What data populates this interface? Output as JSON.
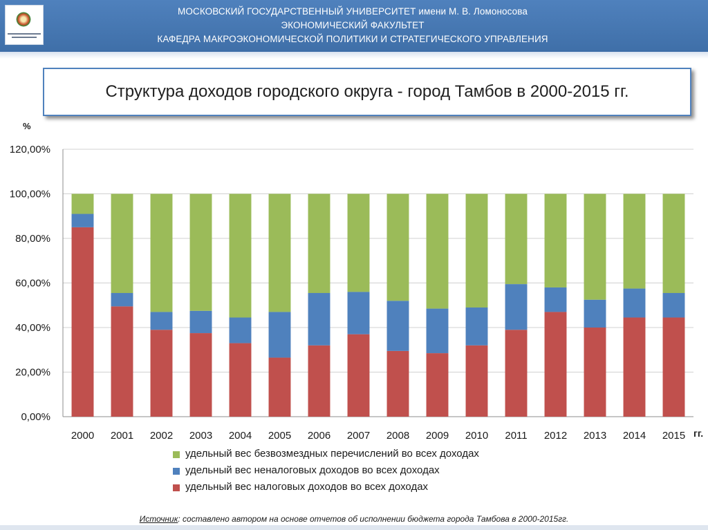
{
  "header": {
    "line1": "МОСКОВСКИЙ ГОСУДАРСТВЕННЫЙ УНИВЕРСИТЕТ имени  М. В. Ломоносова",
    "line2": "ЭКОНОМИЧЕСКИЙ ФАКУЛЬТЕТ",
    "line3": "КАФЕДРА МАКРОЭКОНОМИЧЕСКОЙ ПОЛИТИКИ И СТРАТЕГИЧЕСКОГО УПРАВЛЕНИЯ"
  },
  "title": "Структура доходов городского округа - город Тамбов в 2000-2015 гг.",
  "source": {
    "lead": "Источник",
    "text": ": составлено автором на основе отчетов об исполнении бюджета города Тамбова в 2000-2015гг."
  },
  "chart_data": {
    "type": "bar",
    "stacked": true,
    "ylabel": "%",
    "xlabel": "гг.",
    "ylim": [
      0,
      1.2
    ],
    "yticks": [
      0,
      0.2,
      0.4,
      0.6,
      0.8,
      1.0,
      1.2
    ],
    "ytick_labels": [
      "0,00%",
      "20,00%",
      "40,00%",
      "60,00%",
      "80,00%",
      "100,00%",
      "120,00%"
    ],
    "grid": true,
    "legend_position": "bottom",
    "categories": [
      "2000",
      "2001",
      "2002",
      "2003",
      "2004",
      "2005",
      "2006",
      "2007",
      "2008",
      "2009",
      "2010",
      "2011",
      "2012",
      "2013",
      "2014",
      "2015"
    ],
    "series": [
      {
        "name": "удельный вес налоговых доходов во всех доходах",
        "color": "#c0504d",
        "values": [
          0.85,
          0.495,
          0.39,
          0.375,
          0.33,
          0.265,
          0.32,
          0.37,
          0.295,
          0.285,
          0.32,
          0.39,
          0.47,
          0.4,
          0.445,
          0.445
        ]
      },
      {
        "name": "удельный вес неналоговых доходов во всех доходах",
        "color": "#4f81bd",
        "values": [
          0.06,
          0.06,
          0.08,
          0.1,
          0.115,
          0.205,
          0.235,
          0.19,
          0.225,
          0.2,
          0.17,
          0.205,
          0.11,
          0.125,
          0.13,
          0.11
        ]
      },
      {
        "name": "удельный вес безвозмездных перечислений во всех доходах",
        "color": "#9bbb59",
        "values": [
          0.09,
          0.445,
          0.53,
          0.525,
          0.555,
          0.53,
          0.445,
          0.44,
          0.48,
          0.515,
          0.51,
          0.405,
          0.42,
          0.475,
          0.425,
          0.445
        ]
      }
    ]
  }
}
